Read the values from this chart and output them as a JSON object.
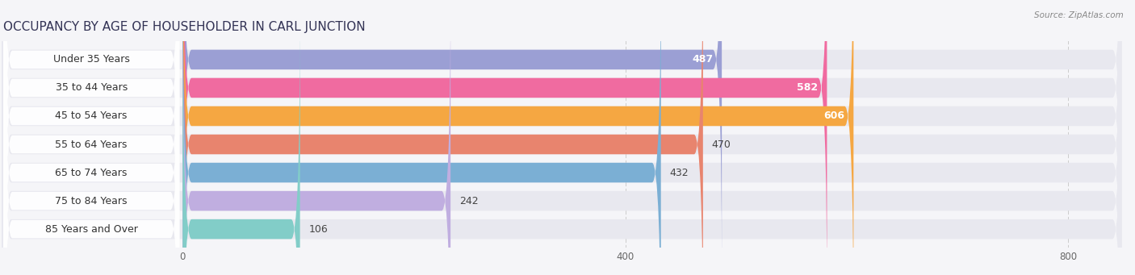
{
  "title": "OCCUPANCY BY AGE OF HOUSEHOLDER IN CARL JUNCTION",
  "source": "Source: ZipAtlas.com",
  "categories": [
    "Under 35 Years",
    "35 to 44 Years",
    "45 to 54 Years",
    "55 to 64 Years",
    "65 to 74 Years",
    "75 to 84 Years",
    "85 Years and Over"
  ],
  "values": [
    487,
    582,
    606,
    470,
    432,
    242,
    106
  ],
  "bar_colors": [
    "#9b9fd4",
    "#f06ba0",
    "#f5a742",
    "#e8846e",
    "#7bafd4",
    "#c0aee0",
    "#82cdc8"
  ],
  "value_colors_white": [
    true,
    true,
    true,
    false,
    false,
    false,
    false
  ],
  "xlim_data": [
    0,
    800
  ],
  "xticks": [
    0,
    400,
    800
  ],
  "title_fontsize": 11,
  "label_fontsize": 9,
  "value_fontsize": 9,
  "background_color": "#f5f5f8",
  "row_bg_color": "#e8e8ef",
  "label_box_color": "#ffffff",
  "bar_height": 0.7,
  "n_bars": 7
}
